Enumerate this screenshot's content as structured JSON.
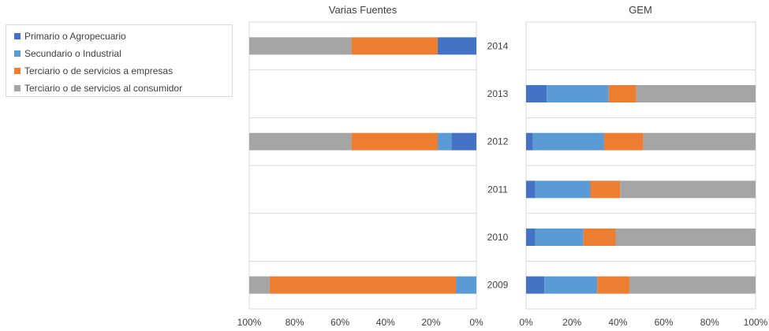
{
  "chart_data": [
    {
      "type": "bar",
      "orientation": "horizontal",
      "stacked": "percent",
      "x_direction": "reversed",
      "title": "Varias Fuentes",
      "categories": [
        "2014",
        "2013",
        "2012",
        "2011",
        "2010",
        "2009"
      ],
      "series": [
        {
          "name": "Primario o Agropecuario",
          "color": "#4472C4",
          "values": [
            17,
            null,
            11,
            null,
            null,
            0
          ]
        },
        {
          "name": "Secundario o Industrial",
          "color": "#5B9BD5",
          "values": [
            0,
            null,
            6,
            null,
            null,
            9
          ]
        },
        {
          "name": "Terciario o de servicios a empresas",
          "color": "#ED7D31",
          "values": [
            38,
            null,
            38,
            null,
            null,
            82
          ]
        },
        {
          "name": "Terciario o de servicios al consumidor",
          "color": "#A5A5A5",
          "values": [
            45,
            null,
            45,
            null,
            null,
            9
          ]
        }
      ],
      "xlim": [
        0,
        100
      ],
      "tick_labels": [
        "100%",
        "80%",
        "60%",
        "40%",
        "20%",
        "0%"
      ],
      "grid": true
    },
    {
      "type": "bar",
      "orientation": "horizontal",
      "stacked": "percent",
      "title": "GEM",
      "categories": [
        "2014",
        "2013",
        "2012",
        "2011",
        "2010",
        "2009"
      ],
      "series": [
        {
          "name": "Primario o Agropecuario",
          "color": "#4472C4",
          "values": [
            null,
            9,
            3,
            4,
            4,
            8
          ]
        },
        {
          "name": "Secundario o Industrial",
          "color": "#5B9BD5",
          "values": [
            null,
            27,
            31,
            24,
            21,
            23
          ]
        },
        {
          "name": "Terciario o de servicios a empresas",
          "color": "#ED7D31",
          "values": [
            null,
            12,
            17,
            13,
            14,
            14
          ]
        },
        {
          "name": "Terciario o de servicios al consumidor",
          "color": "#A5A5A5",
          "values": [
            null,
            52,
            49,
            59,
            61,
            55
          ]
        }
      ],
      "xlim": [
        0,
        100
      ],
      "tick_labels": [
        "0%",
        "20%",
        "40%",
        "60%",
        "80%",
        "100%"
      ],
      "grid": true
    }
  ],
  "legend": {
    "placement": "top-left",
    "items": [
      {
        "label": "Primario o Agropecuario",
        "color": "#4472C4"
      },
      {
        "label": "Secundario o Industrial",
        "color": "#5B9BD5"
      },
      {
        "label": "Terciario o de servicios a empresas",
        "color": "#ED7D31"
      },
      {
        "label": "Terciario o de servicios al consumidor",
        "color": "#A5A5A5"
      }
    ]
  }
}
